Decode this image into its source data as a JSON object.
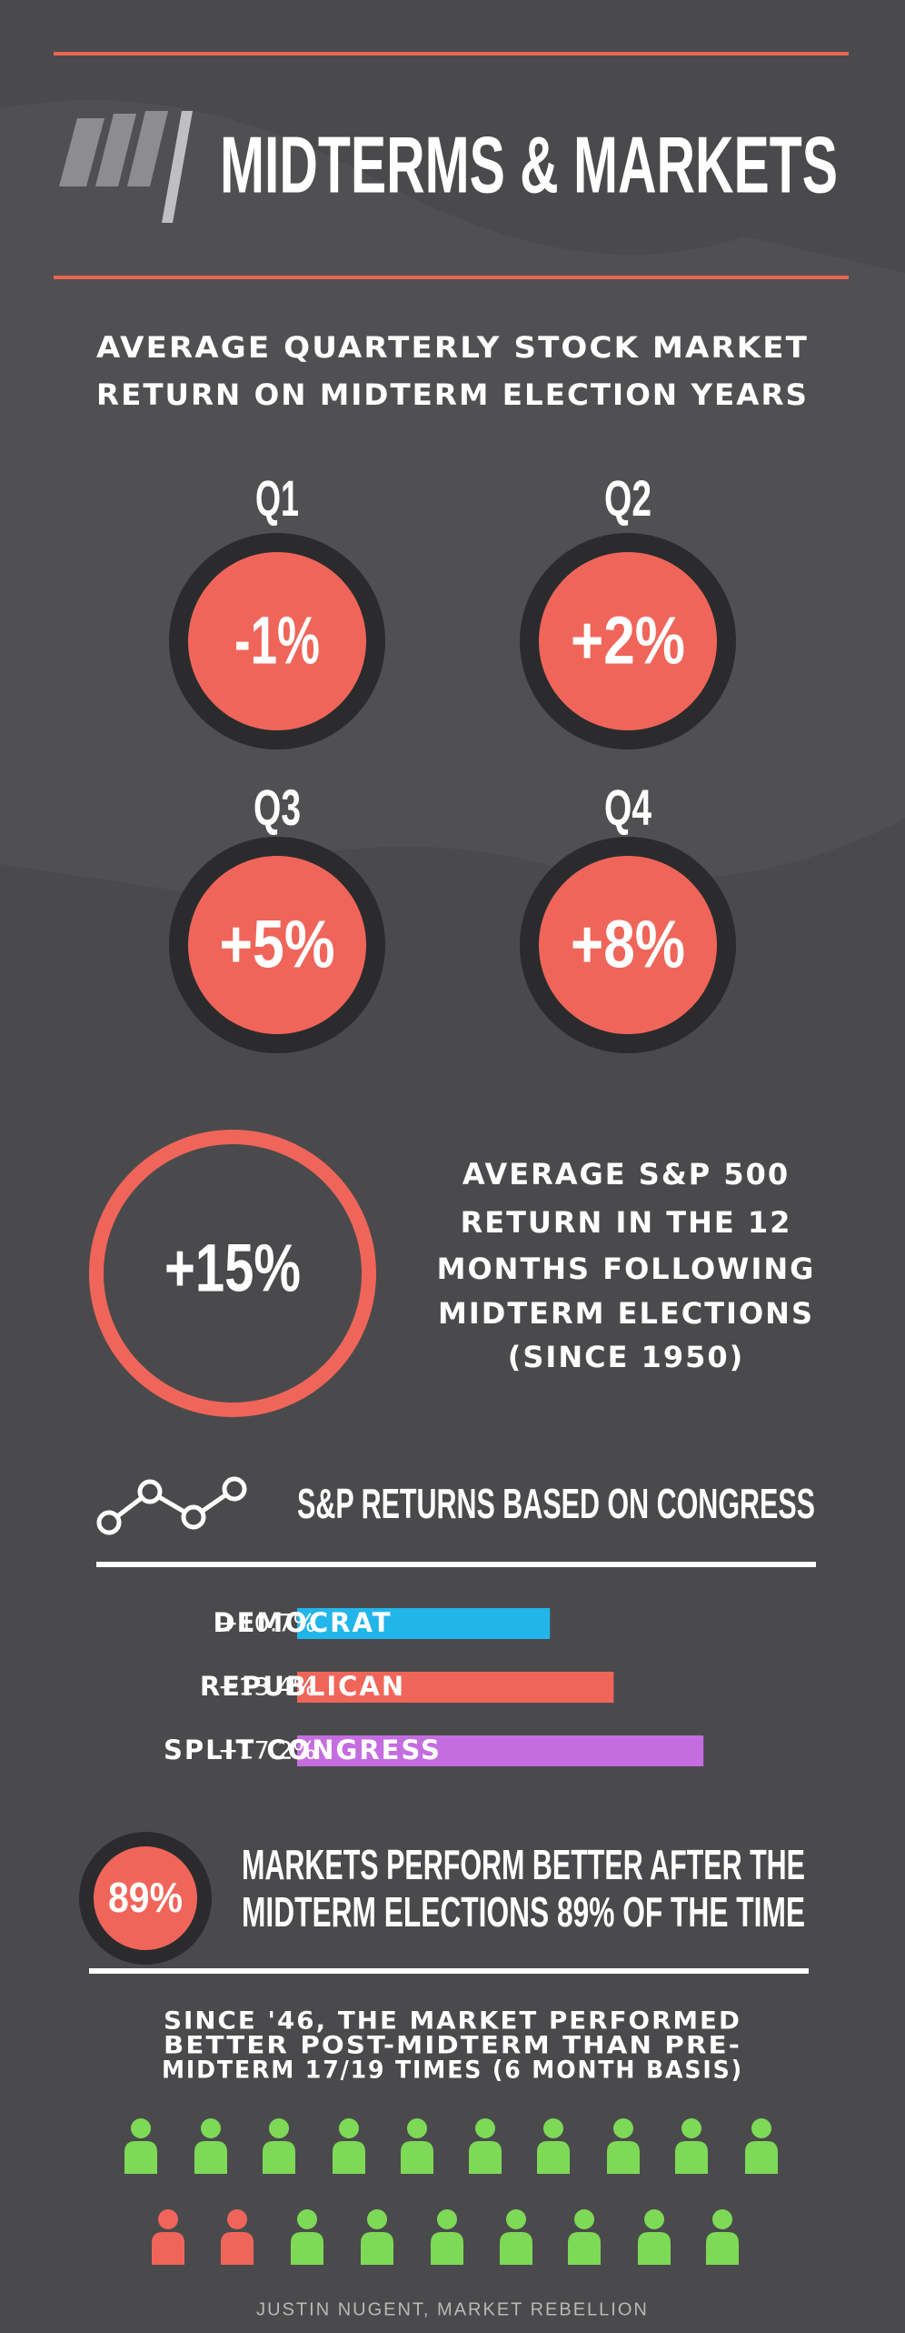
{
  "header": {
    "title": "MIDTERMS & MARKETS",
    "subtitle": [
      "AVERAGE QUARTERLY STOCK MARKET",
      "RETURN ON MIDTERM ELECTION YEARS"
    ]
  },
  "quarters": [
    {
      "label": "Q1",
      "value": "-1%"
    },
    {
      "label": "Q2",
      "value": "+2%"
    },
    {
      "label": "Q3",
      "value": "+5%"
    },
    {
      "label": "Q4",
      "value": "+8%"
    }
  ],
  "annual": {
    "value": "+15%",
    "text": [
      "AVERAGE S&P 500",
      "RETURN IN THE 12",
      "MONTHS FOLLOWING",
      "MIDTERM ELECTIONS",
      "(SINCE 1950)"
    ]
  },
  "congress": {
    "title": "S&P RETURNS BASED ON CONGRESS",
    "categories": [
      "DEMOCRAT",
      "REPUBLICAN",
      "SPLIT CONGRESS"
    ],
    "values": [
      10.7,
      13.4,
      17.2
    ],
    "value_labels": [
      "+10.7%",
      "+13.4%",
      "+17.2%"
    ],
    "colors": [
      "#22b5ea",
      "#f0655a",
      "#c46de0"
    ]
  },
  "frequency": {
    "value": "89%",
    "text": [
      "MARKETS PERFORM BETTER AFTER THE",
      "MIDTERM ELECTIONS 89% OF THE TIME"
    ]
  },
  "history": {
    "text": [
      "SINCE '46, THE MARKET PERFORMED",
      "BETTER POST-MIDTERM THAN PRE-",
      "MIDTERM 17/19 TIMES (6 MONTH BASIS)"
    ]
  },
  "footer": "JUSTIN NUGENT, MARKET REBELLION"
}
